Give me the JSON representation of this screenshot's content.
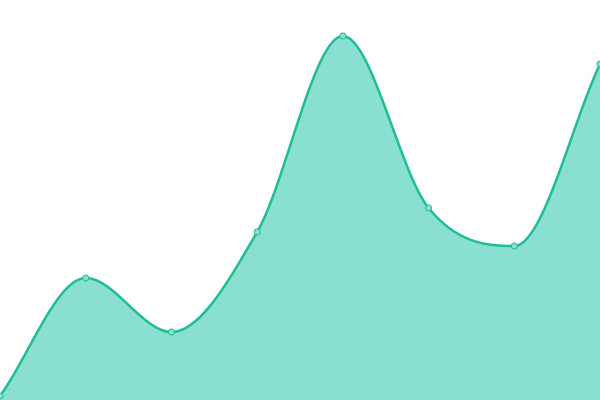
{
  "chart_data": {
    "type": "area",
    "x": [
      0,
      1,
      2,
      3,
      4,
      5,
      6,
      7
    ],
    "series": [
      {
        "values": [
          1,
          30.5,
          17,
          42,
          91,
          48,
          38.5,
          84
        ]
      }
    ],
    "ylim": [
      0,
      100
    ],
    "grid": false,
    "axes_visible": false,
    "curve": "smooth",
    "colors": {
      "fill": "#8ae0d0",
      "line": "#1fbc98",
      "marker": "#8ae0d0"
    }
  }
}
